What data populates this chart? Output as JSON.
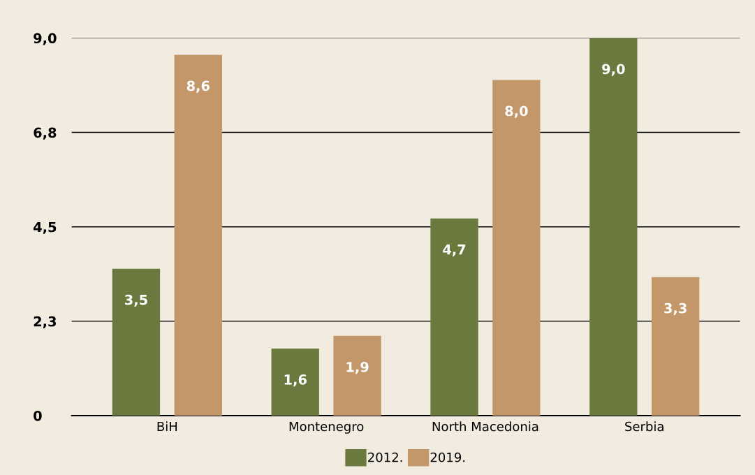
{
  "chart_data": {
    "type": "bar",
    "categories": [
      "BiH",
      "Montenegro",
      "North Macedonia",
      "Serbia"
    ],
    "series": [
      {
        "name": "2012.",
        "color": "#6a7a3e",
        "values": [
          3.5,
          1.6,
          4.7,
          9.0
        ],
        "value_labels": [
          "3,5",
          "1,6",
          "4,7",
          "9,0"
        ]
      },
      {
        "name": "2019.",
        "color": "#c4976a",
        "values": [
          8.6,
          1.9,
          8.0,
          3.3
        ],
        "value_labels": [
          "8,6",
          "1,9",
          "8,0",
          "3,3"
        ]
      }
    ],
    "ylim": [
      0,
      9.0
    ],
    "yticks": [
      {
        "value": 0,
        "label": "0"
      },
      {
        "value": 2.25,
        "label": "2,3"
      },
      {
        "value": 4.5,
        "label": "4,5"
      },
      {
        "value": 6.75,
        "label": "6,8"
      },
      {
        "value": 9.0,
        "label": "9,0"
      }
    ],
    "grid": "y",
    "legend": "bottom"
  }
}
